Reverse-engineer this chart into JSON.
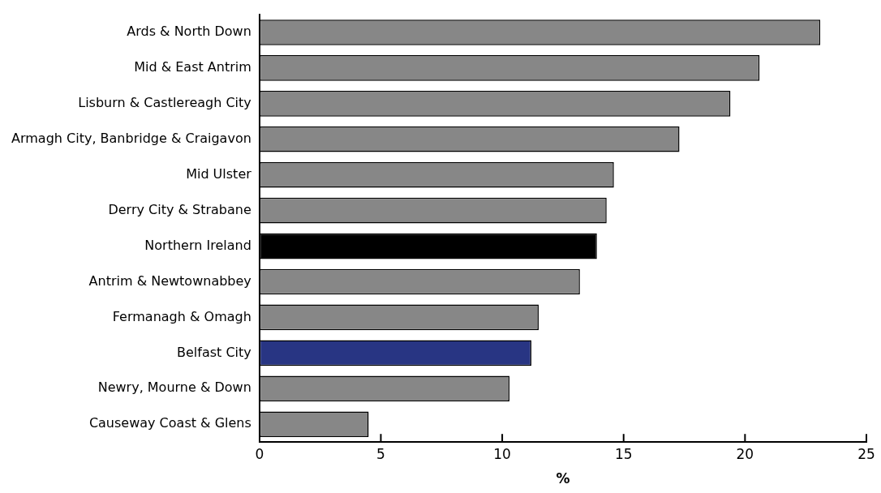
{
  "chart_data": {
    "type": "bar",
    "orientation": "horizontal",
    "xlabel": "%",
    "categories": [
      "Ards & North Down",
      "Mid & East Antrim",
      "Lisburn & Castlereagh City",
      "Armagh City, Banbridge & Craigavon",
      "Mid Ulster",
      "Derry City & Strabane",
      "Northern Ireland",
      "Antrim & Newtownabbey",
      "Fermanagh & Omagh",
      "Belfast City",
      "Newry, Mourne & Down",
      "Causeway Coast & Glens"
    ],
    "values": [
      23.1,
      20.6,
      19.4,
      17.3,
      14.6,
      14.3,
      13.9,
      13.2,
      11.5,
      11.2,
      10.3,
      4.5
    ],
    "colors": [
      "#878787",
      "#878787",
      "#878787",
      "#878787",
      "#878787",
      "#878787",
      "#000000",
      "#878787",
      "#878787",
      "#283583",
      "#878787",
      "#878787"
    ],
    "xlim": [
      0,
      25
    ],
    "xticks": [
      0,
      5,
      10,
      15,
      20,
      25
    ],
    "grid": false,
    "legend": false
  }
}
